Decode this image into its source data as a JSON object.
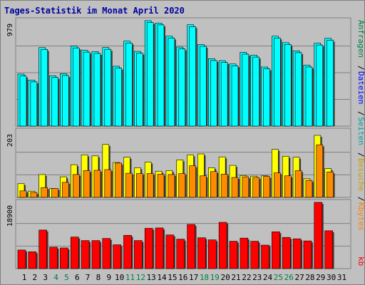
{
  "colors": {
    "background": "#C0C0C0",
    "frame": "#808080",
    "title": "#0000A0",
    "visits": "#00FFFF",
    "pages": "#FFFF00",
    "files": "#FF8C00",
    "kb": "#FF0000",
    "weekend_label": "#008040",
    "weekday_label": "#000000",
    "label_visits": "#00A0A0",
    "label_pages": "#C8A000",
    "label_files": "#0000FF",
    "label_requests": "#008040",
    "label_kb": "#FF0000"
  },
  "chart_data": {
    "type": "bar",
    "title": "Tages-Statistik im Monat April 2020",
    "categories": [
      "1",
      "2",
      "3",
      "4",
      "5",
      "6",
      "7",
      "8",
      "9",
      "10",
      "11",
      "12",
      "13",
      "14",
      "15",
      "16",
      "17",
      "18",
      "19",
      "20",
      "21",
      "22",
      "23",
      "24",
      "25",
      "26",
      "27",
      "28",
      "29",
      "30",
      "31"
    ],
    "weekend_days": [
      "4",
      "5",
      "11",
      "12",
      "18",
      "19",
      "25",
      "26"
    ],
    "panels": [
      {
        "name": "hits",
        "ymax_label": "979",
        "ylim": [
          0,
          979
        ],
        "side_labels": [
          "Anfragen",
          "Dateien",
          "Seiten"
        ],
        "series": [
          {
            "name": "Anfragen",
            "color_key": "visits",
            "values": [
              483,
              428,
              729,
              468,
              487,
              743,
              704,
              692,
              730,
              556,
              789,
              694,
              979,
              957,
              835,
              734,
              941,
              758,
              626,
              608,
              577,
              685,
              658,
              549,
              835,
              775,
              699,
              566,
              770,
              815,
              null
            ]
          },
          {
            "name": "Dateien",
            "color_key": "visits",
            "values": [
              465,
              411,
              712,
              451,
              470,
              726,
              687,
              675,
              713,
              539,
              772,
              677,
              962,
              940,
              818,
              717,
              924,
              741,
              609,
              591,
              560,
              668,
              641,
              532,
              818,
              758,
              682,
              549,
              753,
              798,
              null
            ]
          }
        ]
      },
      {
        "name": "pages",
        "ymax_label": "203",
        "ylim": [
          0,
          203
        ],
        "side_labels": [
          "Besuche",
          "Kbytes"
        ],
        "series": [
          {
            "name": "Seiten",
            "color_key": "pages",
            "values": [
              42,
              19,
              70,
              27,
              63,
              100,
              130,
              127,
              162,
              107,
              123,
              91,
              108,
              80,
              82,
              115,
              130,
              133,
              91,
              124,
              98,
              67,
              65,
              66,
              147,
              126,
              123,
              57,
              190,
              88,
              null
            ]
          },
          {
            "name": "Besuche",
            "color_key": "files",
            "values": [
              20,
              15,
              30,
              27,
              46,
              70,
              82,
              83,
              85,
              105,
              74,
              73,
              73,
              71,
              70,
              73,
              97,
              66,
              79,
              71,
              61,
              63,
              61,
              64,
              75,
              66,
              82,
              52,
              161,
              78,
              null
            ]
          }
        ]
      },
      {
        "name": "kbytes",
        "ymax_label": "18900",
        "ylim": [
          0,
          18900
        ],
        "side_labels": [
          "kb"
        ],
        "series": [
          {
            "name": "kb",
            "color_key": "kb",
            "values": [
              5300,
              4800,
              11000,
              6100,
              5900,
              9000,
              8000,
              8000,
              8600,
              6800,
              9500,
              8000,
              11500,
              11600,
              9600,
              8400,
              12600,
              8800,
              8200,
              13200,
              7800,
              8700,
              7800,
              6700,
              10500,
              8900,
              8500,
              7900,
              18900,
              10800,
              null
            ]
          }
        ]
      }
    ]
  }
}
